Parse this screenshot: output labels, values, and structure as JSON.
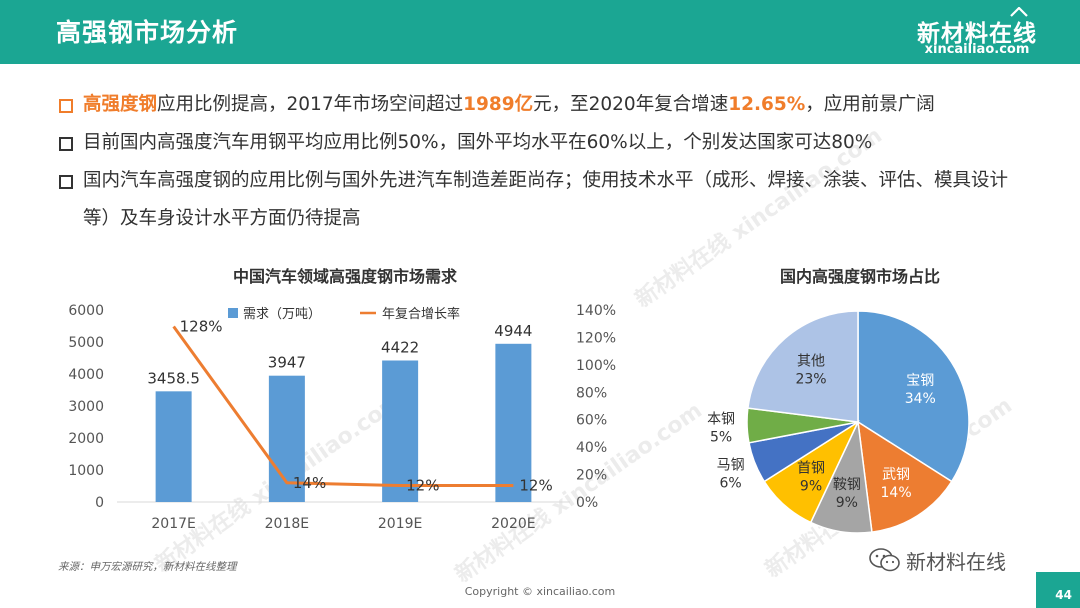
{
  "header": {
    "title": "高强钢市场分析",
    "logo_cn": "新材料在线",
    "logo_en": "xincailiao.com",
    "background": "#1ba693"
  },
  "bullets": [
    {
      "parts": [
        {
          "text": "高强度钢",
          "highlight": true
        },
        {
          "text": "应用比例提高，2017年市场空间超过",
          "highlight": false
        },
        {
          "text": "1989亿",
          "highlight": true
        },
        {
          "text": "元，至2020年复合增速",
          "highlight": false
        },
        {
          "text": "12.65%",
          "highlight": true
        },
        {
          "text": "，应用前景广阔",
          "highlight": false
        }
      ]
    },
    {
      "parts": [
        {
          "text": "目前国内高强度汽车用钢平均应用比例50%，国外平均水平在60%以上，个别发达国家可达80%",
          "highlight": false
        }
      ]
    },
    {
      "parts": [
        {
          "text": "国内汽车高强度钢的应用比例与国外先进汽车制造差距尚存；使用技术水平（成形、焊接、涂装、评估、模具设计等）及车身设计水平方面仍待提高",
          "highlight": false
        }
      ]
    }
  ],
  "chart_data": [
    {
      "type": "bar",
      "title": "中国汽车领域高强度钢市场需求",
      "categories": [
        "2017E",
        "2018E",
        "2019E",
        "2020E"
      ],
      "series": [
        {
          "name": "需求（万吨）",
          "type": "bar",
          "axis": "left",
          "values": [
            3458.5,
            3947,
            4422,
            4944
          ],
          "labels": [
            "3458.5",
            "3947",
            "4422",
            "4944"
          ],
          "color": "#5b9bd5"
        },
        {
          "name": "年复合增长率",
          "type": "line",
          "axis": "right",
          "values": [
            128,
            14,
            12,
            12
          ],
          "labels": [
            "128%",
            "14%",
            "12%",
            "12%"
          ],
          "color": "#ed7d31"
        }
      ],
      "y_left": {
        "min": 0,
        "max": 6000,
        "ticks": [
          "0",
          "1000",
          "2000",
          "3000",
          "4000",
          "5000",
          "6000"
        ]
      },
      "y_right": {
        "min": 0,
        "max": 140,
        "ticks": [
          "0%",
          "20%",
          "40%",
          "60%",
          "80%",
          "100%",
          "120%",
          "140%"
        ]
      },
      "legend": "top"
    },
    {
      "type": "pie",
      "title": "国内高强度钢市场占比",
      "slices": [
        {
          "name": "宝钢",
          "value": 34,
          "label": "34%",
          "color": "#5b9bd5",
          "text_color": "#ffffff"
        },
        {
          "name": "武钢",
          "value": 14,
          "label": "14%",
          "color": "#ed7d31",
          "text_color": "#ffffff"
        },
        {
          "name": "鞍钢",
          "value": 9,
          "label": "9%",
          "color": "#a5a5a5",
          "text_color": "#333333"
        },
        {
          "name": "首钢",
          "value": 9,
          "label": "9%",
          "color": "#ffc000",
          "text_color": "#333333"
        },
        {
          "name": "马钢",
          "value": 6,
          "label": "6%",
          "color": "#4472c4",
          "text_color": "#333333"
        },
        {
          "name": "本钢",
          "value": 5,
          "label": "5%",
          "color": "#70ad47",
          "text_color": "#333333"
        },
        {
          "name": "其他",
          "value": 23,
          "label": "23%",
          "color": "#adc3e6",
          "text_color": "#333333"
        }
      ]
    }
  ],
  "footer": {
    "source": "来源：申万宏源研究，新材料在线整理",
    "copyright": "Copyright © xincailiao.com",
    "wechat": "新材料在线",
    "page_number": "44"
  },
  "watermark": "新材料在线 xincailiao.com"
}
